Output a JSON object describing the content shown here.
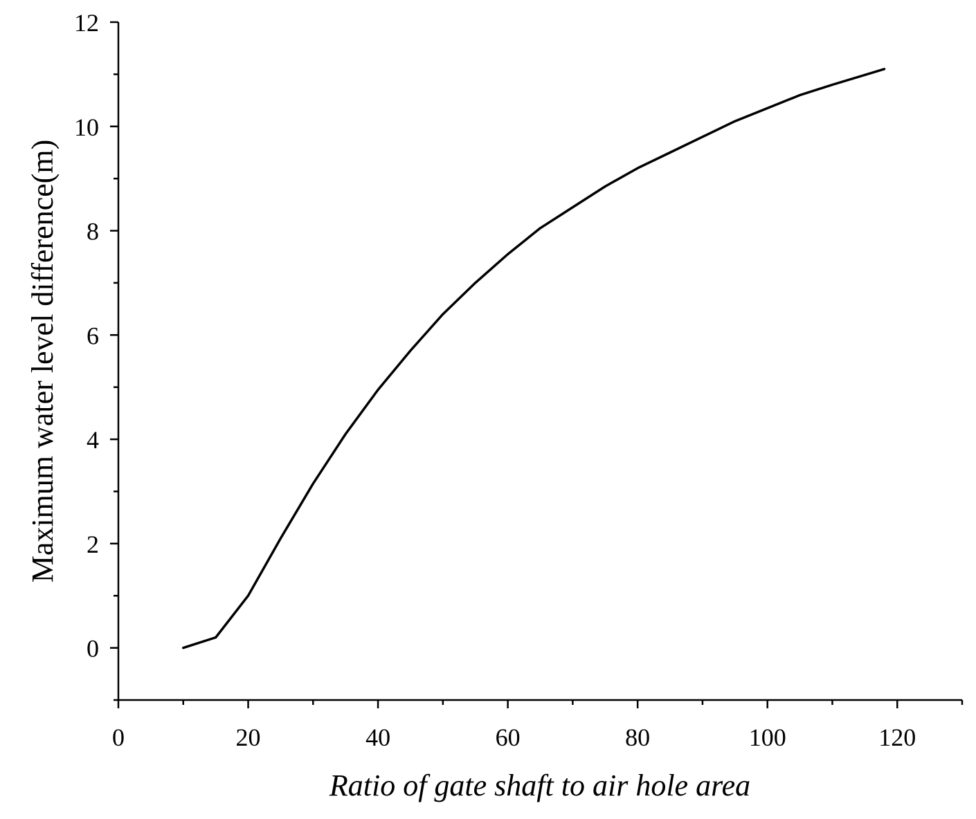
{
  "chart_data": {
    "type": "line",
    "title": "",
    "xlabel": "Ratio of gate shaft to air hole area",
    "ylabel": "Maximum water level difference(m)",
    "xlim": [
      0,
      130
    ],
    "ylim": [
      -1,
      12
    ],
    "x_ticks": [
      0,
      20,
      40,
      60,
      80,
      100,
      120
    ],
    "x_tick_labels": [
      "0",
      "20",
      "40",
      "60",
      "80",
      "100",
      "120"
    ],
    "x_minor_ticks": [
      10,
      30,
      50,
      70,
      90,
      110,
      130
    ],
    "y_ticks": [
      0,
      2,
      4,
      6,
      8,
      10,
      12
    ],
    "y_tick_labels": [
      "0",
      "2",
      "4",
      "6",
      "8",
      "10",
      "12"
    ],
    "y_minor_ticks": [
      -1,
      1,
      3,
      5,
      7,
      9,
      11
    ],
    "grid": false,
    "legend": "none",
    "series": [
      {
        "color": "#000000",
        "x": [
          10,
          15,
          20,
          25,
          30,
          35,
          40,
          45,
          50,
          55,
          60,
          65,
          70,
          75,
          80,
          85,
          90,
          95,
          100,
          105,
          110,
          118
        ],
        "y": [
          0,
          0.2,
          1.0,
          2.1,
          3.15,
          4.1,
          4.95,
          5.7,
          6.4,
          7.0,
          7.55,
          8.05,
          8.45,
          8.85,
          9.2,
          9.5,
          9.8,
          10.1,
          10.35,
          10.6,
          10.8,
          11.1
        ]
      }
    ]
  }
}
